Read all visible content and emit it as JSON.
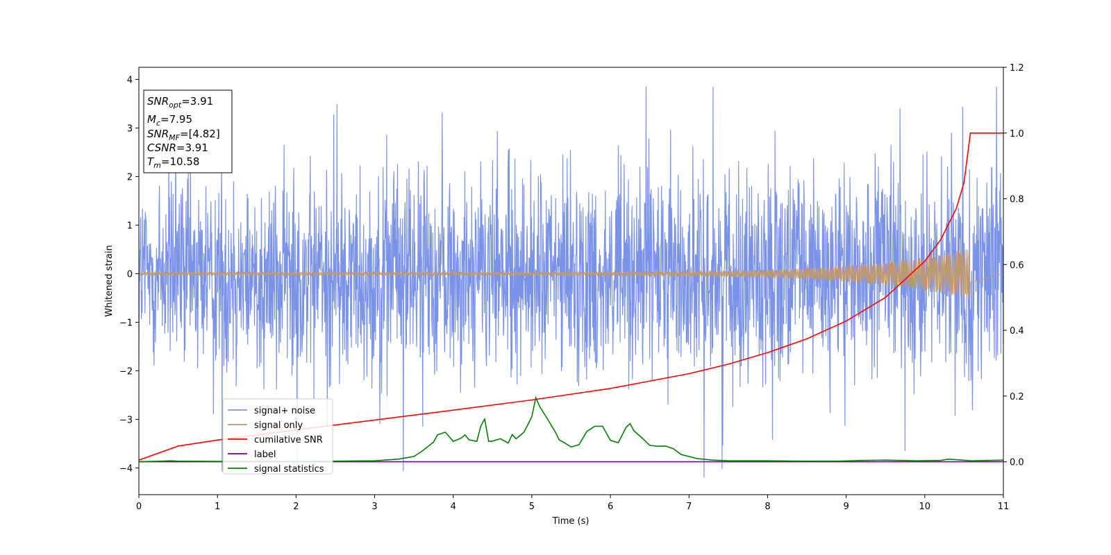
{
  "chart_data": {
    "type": "line",
    "xlabel": "Time (s)",
    "ylabel": "Whitened strain",
    "xlim": [
      0,
      11
    ],
    "ylim": [
      -4.55,
      4.25
    ],
    "y2lim": [
      -0.1,
      1.2
    ],
    "x_ticks": [
      0,
      1,
      2,
      3,
      4,
      5,
      6,
      7,
      8,
      9,
      10,
      11
    ],
    "y_ticks": [
      4,
      3,
      2,
      1,
      0,
      -1,
      -2,
      -3,
      -4
    ],
    "y2_ticks": [
      1.2,
      1.0,
      0.8,
      0.6,
      0.4,
      0.2,
      0.0
    ],
    "x_tick_labels": [
      "0",
      "1",
      "2",
      "3",
      "4",
      "5",
      "6",
      "7",
      "8",
      "9",
      "10",
      "11"
    ],
    "y_tick_labels": [
      "4",
      "3",
      "2",
      "1",
      "0",
      "−1",
      "−2",
      "−3",
      "−4"
    ],
    "y2_tick_labels": [
      "1.2",
      "1.0",
      "0.8",
      "0.6",
      "0.4",
      "0.2",
      "0.0"
    ],
    "legend_position": "lower-left",
    "grid": false,
    "annotation": {
      "lines": [
        {
          "main": "SNR",
          "sub": "opt",
          "rest": "=3.91"
        },
        {
          "main": "M",
          "sub": "c",
          "rest": "=7.95"
        },
        {
          "main": "SNR",
          "sub": "MF",
          "rest": "=[4.82]"
        },
        {
          "main": "CSNR",
          "sub": "",
          "rest": "=3.91"
        },
        {
          "main": "T",
          "sub": "m",
          "rest": "=10.58"
        }
      ]
    },
    "series": [
      {
        "name": "signal+ noise",
        "axis": "left",
        "color": "#7a93e8",
        "kind": "noise",
        "t_end": 11,
        "band": [
          -1.45,
          1.45
        ],
        "peak_range": [
          -4.2,
          3.85
        ]
      },
      {
        "name": "signal only",
        "axis": "left",
        "color": "#c09a6f",
        "kind": "chirp",
        "t_end": 10.58,
        "amp_start": 0.03,
        "amp_end": 0.52
      },
      {
        "name": "cumilative SNR",
        "axis": "right",
        "color": "#ff0000",
        "x": [
          0,
          0.5,
          1,
          2,
          3,
          4,
          5,
          6,
          7,
          7.5,
          8,
          8.5,
          9,
          9.5,
          10,
          10.2,
          10.4,
          10.5,
          10.58,
          11
        ],
        "y": [
          0.005,
          0.048,
          0.066,
          0.097,
          0.127,
          0.157,
          0.188,
          0.223,
          0.268,
          0.297,
          0.332,
          0.374,
          0.428,
          0.5,
          0.61,
          0.675,
          0.77,
          0.85,
          1.0,
          1.0
        ]
      },
      {
        "name": "label",
        "axis": "right",
        "color": "#800080",
        "x": [
          0,
          11
        ],
        "y": [
          0,
          0
        ]
      },
      {
        "name": "signal statistics",
        "axis": "right",
        "color": "#008000",
        "x": [
          0,
          0.3,
          0.4,
          0.5,
          1,
          2,
          2.5,
          3,
          3.3,
          3.4,
          3.5,
          3.6,
          3.75,
          3.8,
          3.9,
          4.0,
          4.1,
          4.15,
          4.2,
          4.3,
          4.35,
          4.4,
          4.45,
          4.5,
          4.6,
          4.7,
          4.75,
          4.8,
          4.9,
          5.0,
          5.05,
          5.1,
          5.2,
          5.3,
          5.35,
          5.4,
          5.5,
          5.6,
          5.7,
          5.8,
          5.9,
          6.0,
          6.1,
          6.2,
          6.25,
          6.3,
          6.4,
          6.5,
          6.6,
          6.7,
          6.8,
          6.9,
          7.0,
          7.1,
          7.3,
          7.5,
          8.0,
          8.5,
          8.9,
          9.2,
          9.5,
          9.9,
          10.2,
          10.3,
          10.6,
          11
        ],
        "y": [
          0.0,
          0.002,
          0.003,
          0.002,
          0.001,
          0.001,
          0.002,
          0.003,
          0.008,
          0.012,
          0.016,
          0.032,
          0.06,
          0.082,
          0.09,
          0.062,
          0.072,
          0.082,
          0.067,
          0.062,
          0.108,
          0.13,
          0.062,
          0.063,
          0.07,
          0.057,
          0.083,
          0.07,
          0.09,
          0.137,
          0.195,
          0.168,
          0.13,
          0.09,
          0.066,
          0.06,
          0.045,
          0.052,
          0.092,
          0.108,
          0.108,
          0.065,
          0.058,
          0.105,
          0.116,
          0.094,
          0.073,
          0.05,
          0.047,
          0.048,
          0.04,
          0.022,
          0.016,
          0.01,
          0.005,
          0.003,
          0.003,
          0.002,
          0.002,
          0.004,
          0.005,
          0.003,
          0.004,
          0.008,
          0.003,
          0.005
        ]
      }
    ]
  }
}
